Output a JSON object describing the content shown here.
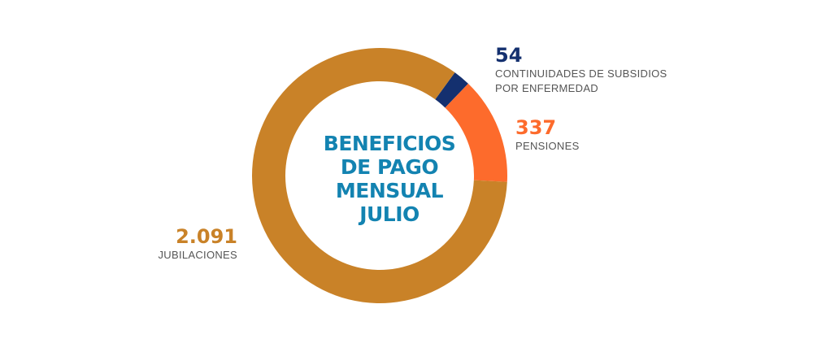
{
  "center_title": [
    "BENEFICIOS",
    "DE PAGO",
    "MENSUAL",
    "JULIO"
  ],
  "chart_data": {
    "type": "pie",
    "donut": true,
    "start_at": "top, clockwise",
    "slices": [
      {
        "label_lines": [
          "CONTINUIDADES DE SUBSIDIOS",
          "POR ENFERMEDAD"
        ],
        "value_text": "54",
        "value": 54,
        "color": "#14306f"
      },
      {
        "label_lines": [
          "PENSIONES"
        ],
        "value_text": "337",
        "value": 337,
        "color": "#fd6b2c"
      },
      {
        "label_lines": [
          "JUBILACIONES"
        ],
        "value_text": "2.091",
        "value": 2091,
        "color": "#c98228"
      }
    ]
  }
}
